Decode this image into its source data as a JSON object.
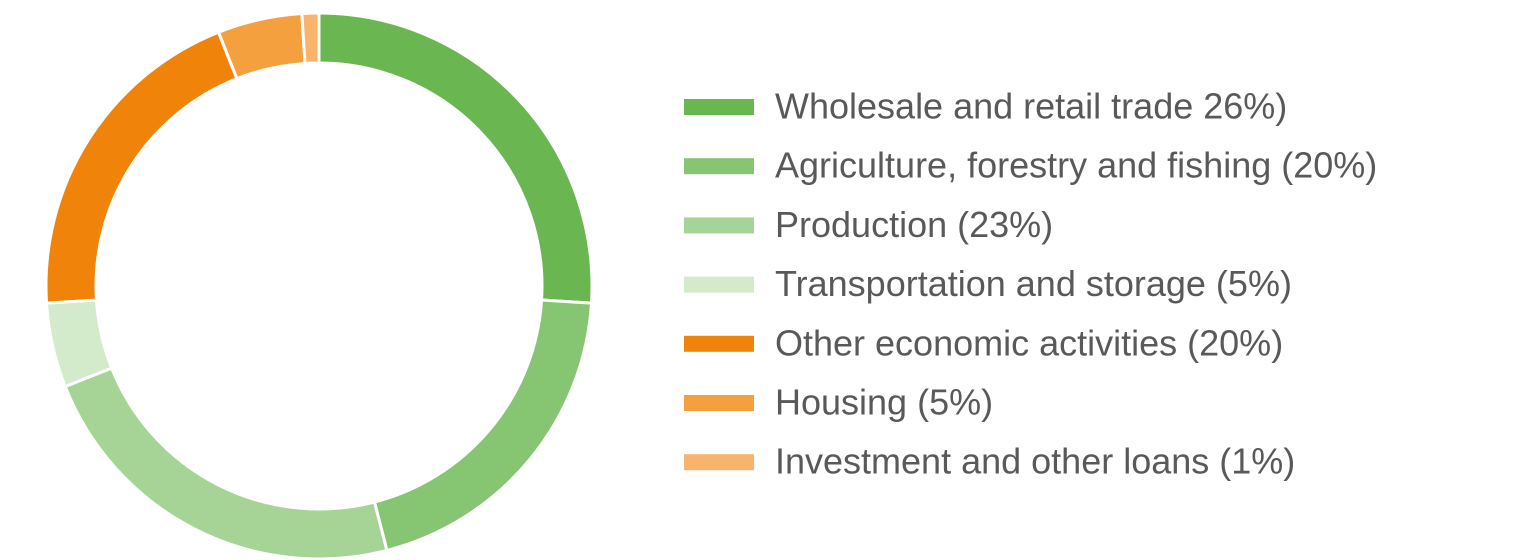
{
  "chart_data": {
    "type": "donut",
    "categories": [
      "Wholesale and retail trade 26%)",
      "Agriculture, forestry and fishing (20%)",
      "Production (23%)",
      "Transportation and storage (5%)",
      "Other economic activities (20%)",
      "Housing (5%)",
      "Investment and other loans (1%)"
    ],
    "values": [
      26,
      20,
      23,
      5,
      20,
      5,
      1
    ],
    "colors": [
      "#6ab650",
      "#86c672",
      "#a6d496",
      "#d3eacb",
      "#f0830a",
      "#f4a03e",
      "#f9b36a"
    ],
    "legend": "right"
  }
}
